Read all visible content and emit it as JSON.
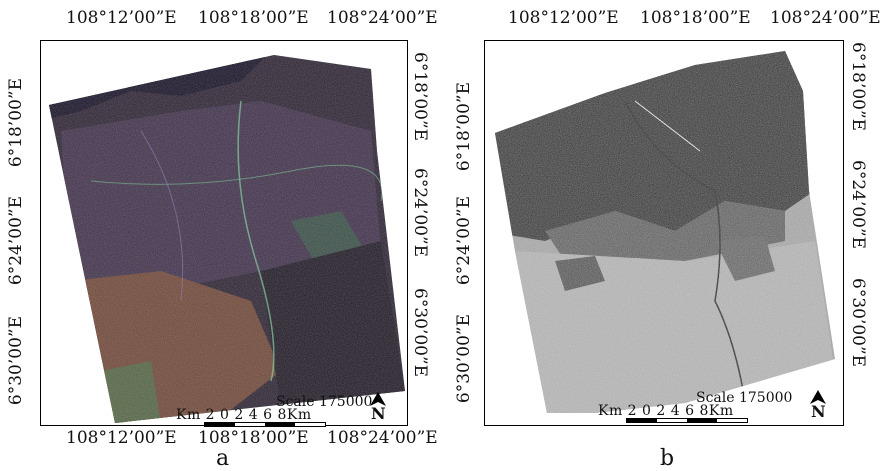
{
  "panel_a": {
    "caption": "a",
    "top_labels": [
      "108°12’00”E",
      "108°18’00”E",
      "108°24’00”E"
    ],
    "bottom_labels": [
      "108°12’00”E",
      "108°18’00”E",
      "108°24’00”E"
    ],
    "left_labels": [
      "6°18’00”E",
      "6°24’00”E",
      "6°30’00”E"
    ],
    "right_labels": [
      "6°18’00”E",
      "6°24’00”E",
      "6°30’00”E"
    ],
    "scale_title": "Scale 175000",
    "scale_km": "Km 2   0    2   4  6   8Km",
    "north_label": "N"
  },
  "panel_b": {
    "caption": "b",
    "top_labels": [
      "108°12’00”E",
      "108°18’00”E",
      "108°24’00”E"
    ],
    "left_labels": [
      "6°18’00”E",
      "6°24’00”E",
      "6°30’00”E"
    ],
    "right_labels": [
      "6°18’00”E",
      "6°24’00”E",
      "6°30’00”E"
    ],
    "scale_title": "Scale 175000",
    "scale_km": "Km 2   0    2   4  6   8Km",
    "north_label": "N"
  }
}
